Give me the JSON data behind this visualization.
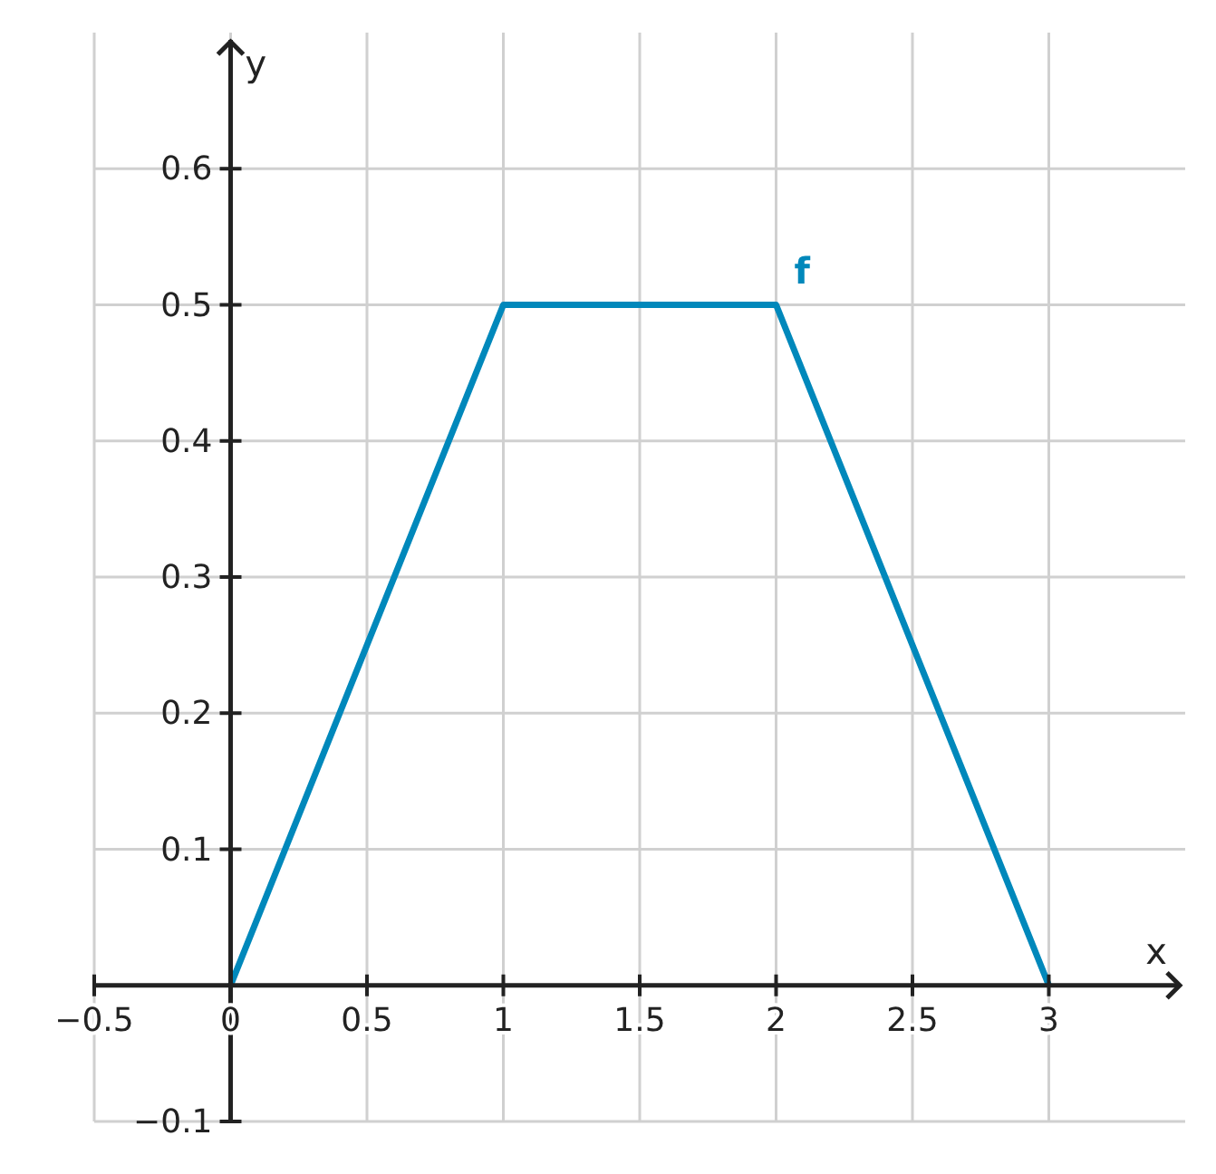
{
  "chart_data": {
    "type": "line",
    "xlabel": "x",
    "ylabel": "y",
    "x": [
      0,
      1,
      2,
      3
    ],
    "series": [
      {
        "name": "f",
        "color": "#0088bb",
        "values": [
          0,
          0.5,
          0.5,
          0
        ]
      }
    ],
    "xlim": [
      -0.5,
      3.5
    ],
    "ylim": [
      -0.1,
      0.7
    ],
    "xticks": [
      {
        "value": -0.5,
        "label": "−0.5"
      },
      {
        "value": 0,
        "label": "0"
      },
      0.5,
      1,
      1.5,
      2,
      2.5,
      3
    ],
    "yticks": [
      {
        "value": -0.1,
        "label": "−0.1"
      },
      0.1,
      0.2,
      0.3,
      0.4,
      0.5,
      0.6
    ],
    "grid": true,
    "legend": false,
    "marker": "none",
    "line_style": "solid"
  }
}
